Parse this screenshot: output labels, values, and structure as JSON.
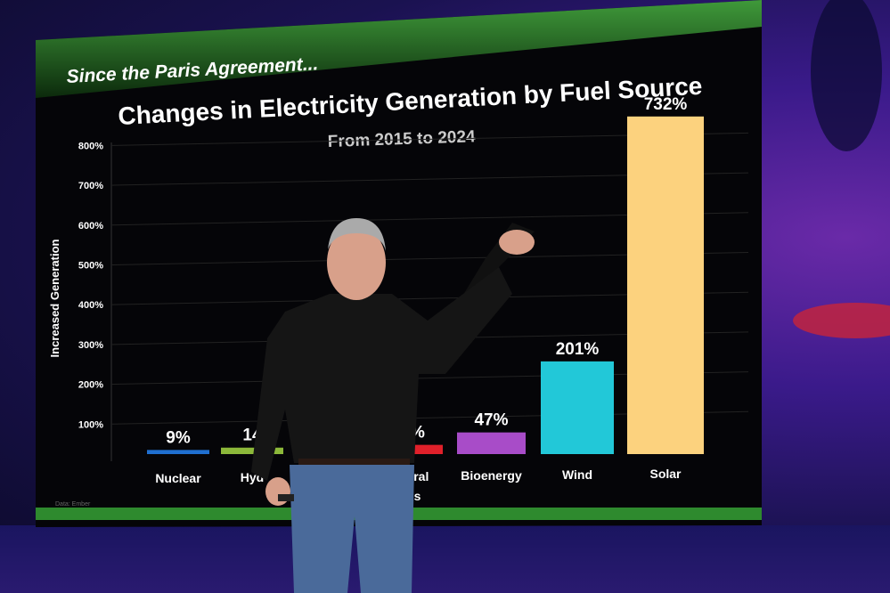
{
  "slide": {
    "banner": "Since the Paris Agreement...",
    "source_note": "Data: Ember"
  },
  "chart_data": {
    "type": "bar",
    "title": "Changes in Electricity Generation by Fuel Source",
    "subtitle": "From 2015 to 2024",
    "ylabel": "Increased Generation",
    "xlabel": "",
    "ylim": [
      0,
      800
    ],
    "yticks": [
      "100%",
      "200%",
      "300%",
      "400%",
      "500%",
      "600%",
      "700%",
      "800%"
    ],
    "grid": true,
    "categories": [
      "Nuclear",
      "Hyd",
      "ural",
      "Bioenergy",
      "Wind",
      "Solar"
    ],
    "category_label_extra": {
      "ural": "s"
    },
    "values": [
      9,
      14,
      20,
      47,
      201,
      732
    ],
    "data_labels": [
      "9%",
      "14",
      "%",
      "47%",
      "201%",
      "732%"
    ],
    "colors": [
      "#1f6fd0",
      "#8cb83a",
      "#e0202a",
      "#a84cc8",
      "#22c8d8",
      "#fcd27e"
    ]
  },
  "colors": {
    "screen_bg": "#050508",
    "banner_green": "#2a7a2a",
    "bottom_strip": "#2e8a2e"
  }
}
